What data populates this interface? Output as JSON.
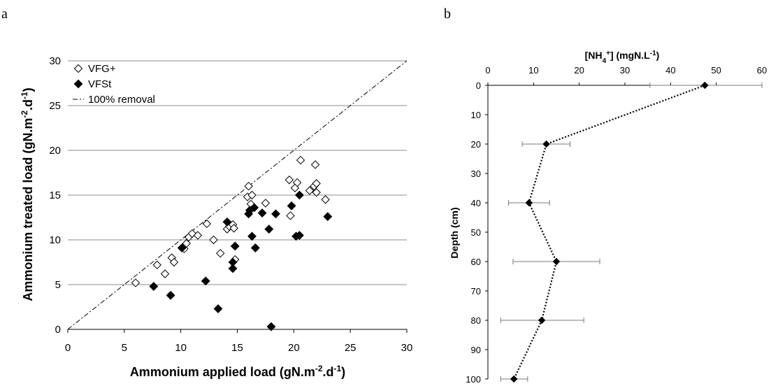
{
  "panels": {
    "a": "a",
    "b": "b"
  },
  "chart_data": [
    {
      "type": "scatter",
      "panel": "a",
      "xlabel": {
        "main": "Ammonium applied load (gN.m",
        "sup1": "-2",
        "mid": ".d",
        "sup2": "-1",
        "end": ")"
      },
      "ylabel": {
        "main": "Ammonium treated load (gN.m",
        "sup1": "-2",
        "mid": ".d",
        "sup2": "-1",
        "end": ")"
      },
      "xlim": [
        0,
        30
      ],
      "ylim": [
        0,
        30
      ],
      "xticks": [
        "0",
        "5",
        "10",
        "15",
        "20",
        "25",
        "30"
      ],
      "yticks": [
        "0",
        "5",
        "10",
        "15",
        "20",
        "25",
        "30"
      ],
      "grid": "horizontal",
      "legend_position": "top-left",
      "series": [
        {
          "name": "VFG+",
          "marker": "open-diamond",
          "color": "#000000",
          "points": [
            [
              6.0,
              5.2
            ],
            [
              7.9,
              7.2
            ],
            [
              8.6,
              6.2
            ],
            [
              9.2,
              8.0
            ],
            [
              9.4,
              7.5
            ],
            [
              10.3,
              9.0
            ],
            [
              10.5,
              9.6
            ],
            [
              10.7,
              10.3
            ],
            [
              11.0,
              10.7
            ],
            [
              11.5,
              10.5
            ],
            [
              12.3,
              11.8
            ],
            [
              12.9,
              10.0
            ],
            [
              13.5,
              8.5
            ],
            [
              14.1,
              11.2
            ],
            [
              14.3,
              11.5
            ],
            [
              14.6,
              11.7
            ],
            [
              14.7,
              11.3
            ],
            [
              14.8,
              7.8
            ],
            [
              15.9,
              14.8
            ],
            [
              16.0,
              16.0
            ],
            [
              16.2,
              14.0
            ],
            [
              16.3,
              15.0
            ],
            [
              17.5,
              14.1
            ],
            [
              19.6,
              16.7
            ],
            [
              19.7,
              12.7
            ],
            [
              20.1,
              15.8
            ],
            [
              20.3,
              16.4
            ],
            [
              20.6,
              18.9
            ],
            [
              21.4,
              15.5
            ],
            [
              21.8,
              16.0
            ],
            [
              21.9,
              18.4
            ],
            [
              22.0,
              16.3
            ],
            [
              22.0,
              15.3
            ],
            [
              22.8,
              14.5
            ]
          ]
        },
        {
          "name": "VFSt",
          "marker": "filled-diamond",
          "color": "#000000",
          "points": [
            [
              7.6,
              4.8
            ],
            [
              9.1,
              3.8
            ],
            [
              10.1,
              9.1
            ],
            [
              12.2,
              5.4
            ],
            [
              13.3,
              2.3
            ],
            [
              14.1,
              12.0
            ],
            [
              14.6,
              7.5
            ],
            [
              14.6,
              6.8
            ],
            [
              14.8,
              9.3
            ],
            [
              16.0,
              12.9
            ],
            [
              16.1,
              13.3
            ],
            [
              16.3,
              10.4
            ],
            [
              16.5,
              13.6
            ],
            [
              16.6,
              9.1
            ],
            [
              17.2,
              13.0
            ],
            [
              17.8,
              11.2
            ],
            [
              18.0,
              0.3
            ],
            [
              18.4,
              12.9
            ],
            [
              19.8,
              13.8
            ],
            [
              20.2,
              10.4
            ],
            [
              20.5,
              10.5
            ],
            [
              20.5,
              15.0
            ],
            [
              23.0,
              12.6
            ]
          ]
        },
        {
          "name": "100% removal",
          "line_style": "dash-dot",
          "color": "#000000",
          "points": [
            [
              0,
              0
            ],
            [
              30,
              30
            ]
          ]
        }
      ]
    },
    {
      "type": "line",
      "panel": "b",
      "xlabel": {
        "pre": "[NH",
        "sub": "4",
        "sup1": "+",
        "post": "] (mgN.L",
        "sup2": "-1",
        "end": ")"
      },
      "ylabel": "Depth (cm)",
      "xlim": [
        0,
        60
      ],
      "ylim": [
        100,
        0
      ],
      "x_axis_position": "top",
      "xticks": [
        "0",
        "10",
        "20",
        "30",
        "40",
        "50",
        "60"
      ],
      "yticks": [
        "0",
        "10",
        "20",
        "30",
        "40",
        "50",
        "60",
        "70",
        "80",
        "90",
        "100"
      ],
      "grid": "none",
      "line_style": "dotted",
      "marker": "filled-diamond",
      "color": "#000000",
      "series": [
        {
          "points": [
            {
              "x": 47.5,
              "y": 0,
              "xerr_low": 35.5,
              "xerr_high": 60.0
            },
            {
              "x": 12.8,
              "y": 20,
              "xerr_low": 7.5,
              "xerr_high": 18.0
            },
            {
              "x": 9.0,
              "y": 40,
              "xerr_low": 4.5,
              "xerr_high": 13.5
            },
            {
              "x": 15.0,
              "y": 60,
              "xerr_low": 5.5,
              "xerr_high": 24.5
            },
            {
              "x": 11.8,
              "y": 80,
              "xerr_low": 2.8,
              "xerr_high": 21.0
            },
            {
              "x": 5.7,
              "y": 100,
              "xerr_low": 2.8,
              "xerr_high": 8.7
            }
          ]
        }
      ]
    }
  ]
}
